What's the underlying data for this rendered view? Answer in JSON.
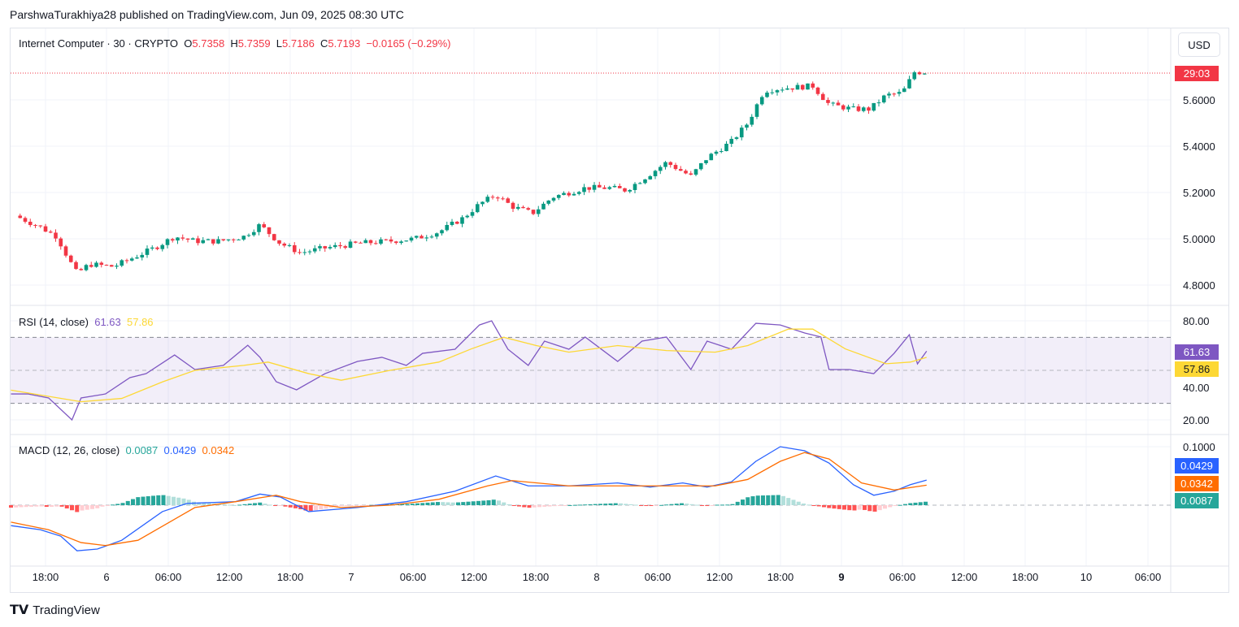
{
  "header": {
    "published": "ParshwaTurakhiya28 published on TradingView.com, Jun 09, 2025 08:30 UTC"
  },
  "legend": {
    "symbol": "Internet Computer · 30 · CRYPTO",
    "o_label": "O",
    "o": "5.7358",
    "h_label": "H",
    "h": "5.7359",
    "l_label": "L",
    "l": "5.7186",
    "c_label": "C",
    "c": "5.7193",
    "change": "−0.0165 (−0.29%)",
    "rsi_label": "RSI (14, close)",
    "rsi": "61.63",
    "rsi_ma": "57.86",
    "macd_label": "MACD (12, 26, close)",
    "macd_hist": "0.0087",
    "macd": "0.0429",
    "macd_signal": "0.0342"
  },
  "axis": {
    "currency": "USD",
    "countdown": "29:03",
    "price_ticks": [
      "5.6000",
      "5.4000",
      "5.2000",
      "5.0000",
      "4.8000"
    ],
    "rsi_ticks": [
      "80.00",
      "40.00",
      "20.00"
    ],
    "macd_ticks": [
      "0.1000"
    ],
    "tags": {
      "rsi": "61.63",
      "rsi_ma": "57.86",
      "macd": "0.0429",
      "signal": "0.0342",
      "hist": "0.0087"
    },
    "time_labels": [
      "18:00",
      "6",
      "06:00",
      "12:00",
      "18:00",
      "7",
      "06:00",
      "12:00",
      "18:00",
      "8",
      "06:00",
      "12:00",
      "18:00",
      "9",
      "06:00",
      "12:00",
      "18:00",
      "10",
      "06:00"
    ]
  },
  "footer": {
    "brand": "TradingView"
  },
  "colors": {
    "up": "#089981",
    "down": "#f23645",
    "rsi": "#7e57c2",
    "rsi_ma": "#fdd835",
    "macd": "#2962ff",
    "signal": "#ff6d00"
  },
  "chart_data": {
    "type": "candlestick",
    "x_unit": "hours since Jun 5 18:00 UTC",
    "interval": "30m",
    "price_path": [
      [
        -3,
        5.1
      ],
      [
        -0.5,
        5.05
      ],
      [
        1.1,
        5.01
      ],
      [
        2.3,
        4.91
      ],
      [
        3.1,
        4.85
      ],
      [
        4.3,
        4.89
      ],
      [
        6.7,
        4.88
      ],
      [
        8.7,
        4.92
      ],
      [
        10.7,
        4.96
      ],
      [
        12.7,
        5.01
      ],
      [
        14.7,
        4.99
      ],
      [
        17.1,
        4.99
      ],
      [
        19.5,
        5.01
      ],
      [
        21.1,
        5.06
      ],
      [
        23.1,
        4.98
      ],
      [
        25.1,
        4.94
      ],
      [
        27.5,
        4.96
      ],
      [
        30.7,
        4.98
      ],
      [
        33.9,
        4.99
      ],
      [
        36.3,
        5.0
      ],
      [
        38.7,
        5.03
      ],
      [
        41.1,
        5.09
      ],
      [
        42.7,
        5.15
      ],
      [
        44.3,
        5.19
      ],
      [
        45.9,
        5.14
      ],
      [
        47.9,
        5.11
      ],
      [
        49.9,
        5.18
      ],
      [
        53.1,
        5.22
      ],
      [
        55.5,
        5.22
      ],
      [
        57.1,
        5.21
      ],
      [
        59.5,
        5.28
      ],
      [
        61.1,
        5.33
      ],
      [
        63.5,
        5.27
      ],
      [
        65.1,
        5.35
      ],
      [
        67.5,
        5.42
      ],
      [
        69.1,
        5.5
      ],
      [
        70.7,
        5.64
      ],
      [
        72.3,
        5.65
      ],
      [
        75.5,
        5.66
      ],
      [
        77.1,
        5.58
      ],
      [
        79.5,
        5.56
      ],
      [
        81.1,
        5.56
      ],
      [
        82.7,
        5.62
      ],
      [
        84.3,
        5.63
      ],
      [
        85.5,
        5.72
      ],
      [
        86.7,
        5.72
      ]
    ],
    "rsi": [
      [
        -3.4,
        35.7
      ],
      [
        -1.7,
        35.7
      ],
      [
        0.3,
        33.3
      ],
      [
        2.6,
        20
      ],
      [
        3.5,
        33.3
      ],
      [
        5.9,
        35.7
      ],
      [
        8.3,
        45.6
      ],
      [
        9.9,
        48
      ],
      [
        12.7,
        59.3
      ],
      [
        14.7,
        50.5
      ],
      [
        17.5,
        53
      ],
      [
        19.9,
        65.2
      ],
      [
        21.1,
        57.9
      ],
      [
        22.7,
        43.1
      ],
      [
        24.7,
        38.2
      ],
      [
        27.5,
        48
      ],
      [
        30.7,
        55.4
      ],
      [
        33.1,
        57.9
      ],
      [
        35.5,
        53
      ],
      [
        37.1,
        60.3
      ],
      [
        40.3,
        62.8
      ],
      [
        42.7,
        77.5
      ],
      [
        43.9,
        80
      ],
      [
        45.5,
        62.8
      ],
      [
        47.5,
        53
      ],
      [
        49.1,
        67.7
      ],
      [
        51.5,
        62.8
      ],
      [
        53.1,
        70.2
      ],
      [
        56.3,
        55.4
      ],
      [
        58.7,
        67.7
      ],
      [
        61.1,
        70.2
      ],
      [
        63.5,
        50.5
      ],
      [
        65.1,
        67.7
      ],
      [
        67.5,
        62.8
      ],
      [
        69.9,
        78.5
      ],
      [
        72.3,
        77.5
      ],
      [
        74.7,
        72.6
      ],
      [
        76.3,
        70.2
      ],
      [
        77.1,
        50.5
      ],
      [
        79.1,
        50.5
      ],
      [
        81.5,
        48
      ],
      [
        83.5,
        60.3
      ],
      [
        85,
        71.6
      ],
      [
        85.8,
        53.9
      ],
      [
        86.7,
        61.63
      ]
    ],
    "rsi_ma": [
      [
        -3.4,
        38
      ],
      [
        3.5,
        31
      ],
      [
        7.5,
        33
      ],
      [
        11.5,
        43
      ],
      [
        14.7,
        50
      ],
      [
        19.5,
        53
      ],
      [
        21.9,
        55
      ],
      [
        25.9,
        48
      ],
      [
        29.1,
        44
      ],
      [
        33.9,
        50
      ],
      [
        38.7,
        55
      ],
      [
        41.9,
        63
      ],
      [
        45.1,
        70
      ],
      [
        48.3,
        65
      ],
      [
        51.5,
        61
      ],
      [
        56.3,
        65
      ],
      [
        61.1,
        62
      ],
      [
        65.9,
        61
      ],
      [
        69.1,
        65
      ],
      [
        73.1,
        75
      ],
      [
        75.5,
        75
      ],
      [
        78.7,
        63
      ],
      [
        82.7,
        54
      ],
      [
        85.1,
        55
      ],
      [
        86.7,
        57.86
      ]
    ],
    "rsi_bands": [
      30,
      50,
      70
    ],
    "rsi_range": [
      10,
      90
    ],
    "macd": [
      [
        -3.4,
        -0.035
      ],
      [
        -0.5,
        -0.042
      ],
      [
        1.5,
        -0.053
      ],
      [
        3.1,
        -0.078
      ],
      [
        5.1,
        -0.075
      ],
      [
        7.5,
        -0.06
      ],
      [
        11.5,
        -0.011
      ],
      [
        13.9,
        0.003
      ],
      [
        18.7,
        0.006
      ],
      [
        21.1,
        0.019
      ],
      [
        23.1,
        0.014
      ],
      [
        25.9,
        -0.011
      ],
      [
        30.7,
        -0.004
      ],
      [
        35.5,
        0.006
      ],
      [
        40.3,
        0.024
      ],
      [
        44.3,
        0.05
      ],
      [
        47.5,
        0.033
      ],
      [
        51.5,
        0.033
      ],
      [
        56.3,
        0.038
      ],
      [
        59.5,
        0.031
      ],
      [
        62.7,
        0.038
      ],
      [
        65.1,
        0.031
      ],
      [
        67.5,
        0.04
      ],
      [
        69.9,
        0.075
      ],
      [
        72.3,
        0.1
      ],
      [
        74.7,
        0.093
      ],
      [
        77.1,
        0.072
      ],
      [
        79.5,
        0.035
      ],
      [
        81.5,
        0.017
      ],
      [
        83.5,
        0.024
      ],
      [
        85.1,
        0.035
      ],
      [
        86.7,
        0.0429
      ]
    ],
    "signal": [
      [
        -3.4,
        -0.029
      ],
      [
        0.3,
        -0.042
      ],
      [
        3.5,
        -0.064
      ],
      [
        5.9,
        -0.069
      ],
      [
        9.1,
        -0.06
      ],
      [
        12.3,
        -0.028
      ],
      [
        14.7,
        -0.004
      ],
      [
        18.7,
        0.006
      ],
      [
        22.7,
        0.017
      ],
      [
        25.1,
        0.006
      ],
      [
        29.1,
        -0.004
      ],
      [
        33.9,
        0.0
      ],
      [
        38.7,
        0.01
      ],
      [
        43.5,
        0.033
      ],
      [
        45.9,
        0.042
      ],
      [
        51.5,
        0.033
      ],
      [
        56.3,
        0.033
      ],
      [
        61.1,
        0.033
      ],
      [
        65.9,
        0.033
      ],
      [
        69.1,
        0.044
      ],
      [
        72.3,
        0.075
      ],
      [
        74.7,
        0.09
      ],
      [
        77.1,
        0.079
      ],
      [
        80.3,
        0.038
      ],
      [
        83.5,
        0.026
      ],
      [
        86.7,
        0.0342
      ]
    ]
  }
}
